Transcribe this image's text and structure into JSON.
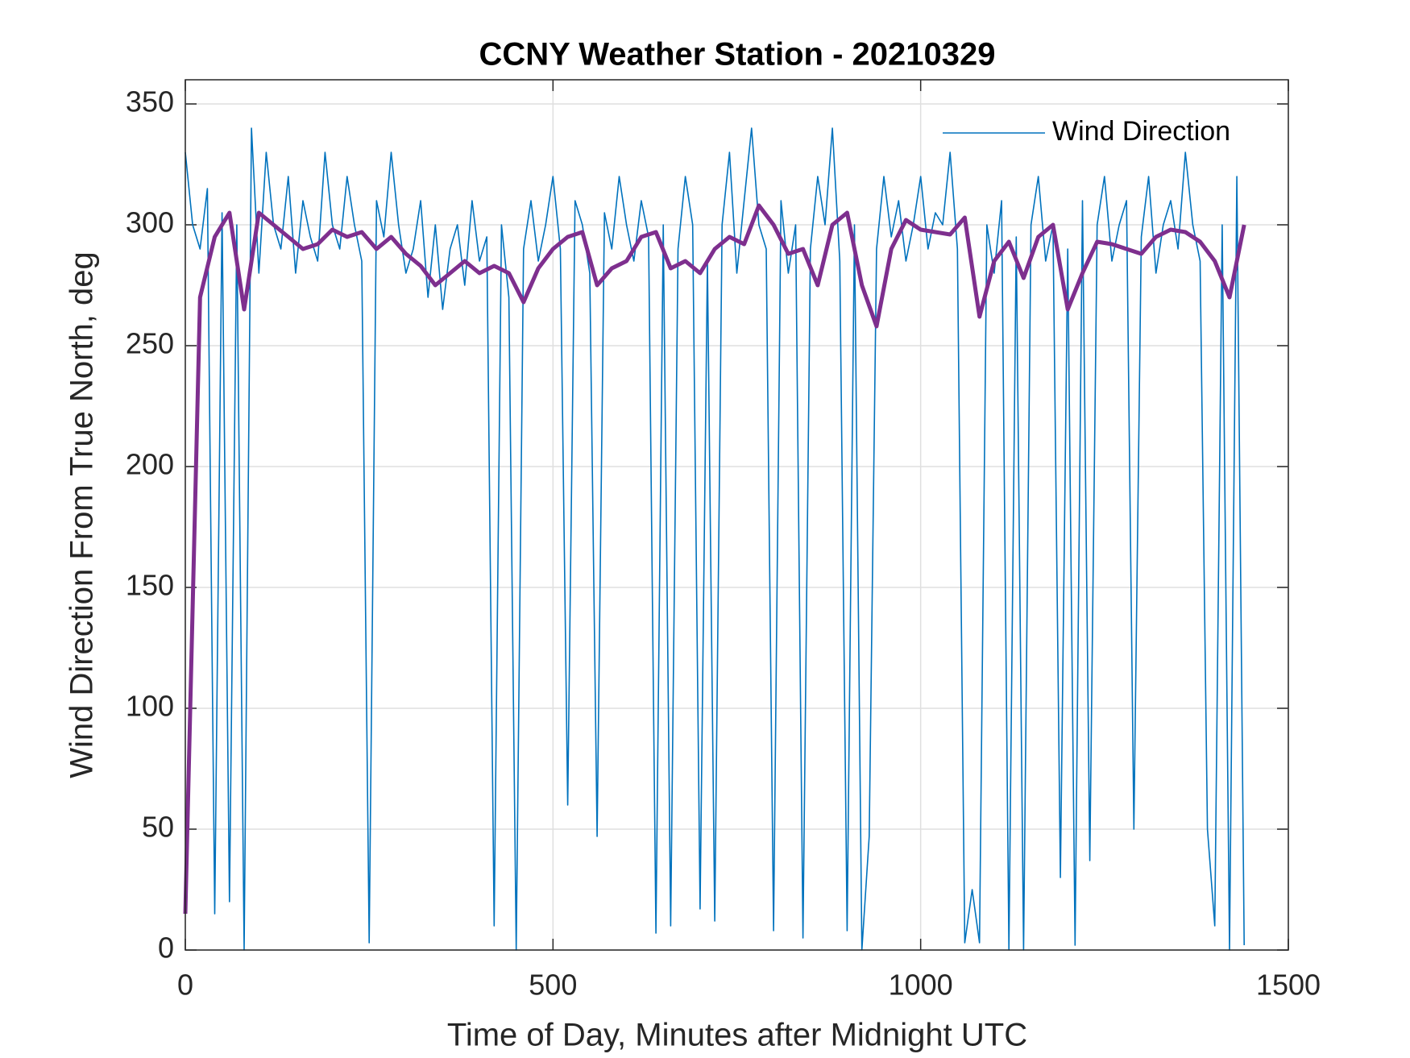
{
  "chart_data": {
    "type": "line",
    "title": "CCNY Weather Station - 20210329",
    "xlabel": "Time of Day, Minutes after Midnight UTC",
    "ylabel": "Wind Direction From True North, deg",
    "xlim": [
      0,
      1500
    ],
    "xticks": [
      0,
      500,
      1000,
      1500
    ],
    "ylim": [
      0,
      360
    ],
    "yticks": [
      0,
      50,
      100,
      150,
      200,
      250,
      300,
      350
    ],
    "grid": true,
    "legend_position": "upper right",
    "series": [
      {
        "name": "Wind Direction",
        "color": "#0072BD",
        "x": [
          0,
          10,
          20,
          30,
          40,
          50,
          60,
          70,
          80,
          90,
          100,
          110,
          120,
          130,
          140,
          150,
          160,
          170,
          180,
          190,
          200,
          210,
          220,
          230,
          240,
          250,
          260,
          270,
          280,
          290,
          300,
          310,
          320,
          330,
          340,
          350,
          360,
          370,
          380,
          390,
          400,
          410,
          420,
          430,
          440,
          450,
          460,
          470,
          480,
          490,
          500,
          510,
          520,
          530,
          540,
          550,
          560,
          570,
          580,
          590,
          600,
          610,
          620,
          630,
          640,
          650,
          660,
          670,
          680,
          690,
          700,
          710,
          720,
          730,
          740,
          750,
          760,
          770,
          780,
          790,
          800,
          810,
          820,
          830,
          840,
          850,
          860,
          870,
          880,
          890,
          900,
          910,
          920,
          930,
          940,
          950,
          960,
          970,
          980,
          990,
          1000,
          1010,
          1020,
          1030,
          1040,
          1050,
          1060,
          1070,
          1080,
          1090,
          1100,
          1110,
          1120,
          1130,
          1140,
          1150,
          1160,
          1170,
          1180,
          1190,
          1200,
          1210,
          1220,
          1230,
          1240,
          1250,
          1260,
          1270,
          1280,
          1290,
          1300,
          1310,
          1320,
          1330,
          1340,
          1350,
          1360,
          1370,
          1380,
          1390,
          1400,
          1410,
          1420,
          1430,
          1440
        ],
        "values": [
          330,
          300,
          290,
          315,
          15,
          305,
          20,
          300,
          0,
          340,
          280,
          330,
          300,
          290,
          320,
          280,
          310,
          295,
          285,
          330,
          300,
          290,
          320,
          300,
          285,
          3,
          310,
          295,
          330,
          300,
          280,
          290,
          310,
          270,
          300,
          265,
          290,
          300,
          275,
          310,
          285,
          295,
          10,
          300,
          270,
          0,
          290,
          310,
          285,
          300,
          320,
          290,
          60,
          310,
          300,
          280,
          47,
          305,
          290,
          320,
          300,
          285,
          310,
          295,
          7,
          300,
          10,
          290,
          320,
          300,
          17,
          285,
          12,
          300,
          330,
          280,
          310,
          340,
          300,
          290,
          8,
          310,
          280,
          300,
          5,
          290,
          320,
          300,
          340,
          285,
          8,
          300,
          0,
          47,
          290,
          320,
          295,
          310,
          285,
          300,
          320,
          290,
          305,
          300,
          330,
          290,
          3,
          25,
          3,
          300,
          280,
          310,
          0,
          295,
          0,
          300,
          320,
          285,
          300,
          30,
          290,
          2,
          310,
          37,
          300,
          320,
          285,
          300,
          310,
          50,
          295,
          320,
          280,
          300,
          310,
          290,
          330,
          300,
          285,
          50,
          10,
          300,
          0,
          320,
          2
        ]
      },
      {
        "color": "#7E2F8E",
        "x": [
          0,
          20,
          40,
          60,
          80,
          100,
          120,
          140,
          160,
          180,
          200,
          220,
          240,
          260,
          280,
          300,
          320,
          340,
          360,
          380,
          400,
          420,
          440,
          460,
          480,
          500,
          520,
          540,
          560,
          580,
          600,
          620,
          640,
          660,
          680,
          700,
          720,
          740,
          760,
          780,
          800,
          820,
          840,
          860,
          880,
          900,
          920,
          940,
          960,
          980,
          1000,
          1020,
          1040,
          1060,
          1080,
          1100,
          1120,
          1140,
          1160,
          1180,
          1200,
          1220,
          1240,
          1260,
          1280,
          1300,
          1320,
          1340,
          1360,
          1380,
          1400,
          1420,
          1440
        ],
        "values": [
          15,
          270,
          295,
          305,
          265,
          305,
          300,
          295,
          290,
          292,
          298,
          295,
          297,
          290,
          295,
          288,
          283,
          275,
          280,
          285,
          280,
          283,
          280,
          268,
          282,
          290,
          295,
          297,
          275,
          282,
          285,
          295,
          297,
          282,
          285,
          280,
          290,
          295,
          292,
          308,
          300,
          288,
          290,
          275,
          300,
          305,
          275,
          258,
          290,
          302,
          298,
          297,
          296,
          303,
          262,
          285,
          293,
          278,
          295,
          300,
          265,
          280,
          293,
          292,
          290,
          288,
          295,
          298,
          297,
          293,
          285,
          270,
          300
        ]
      }
    ]
  }
}
